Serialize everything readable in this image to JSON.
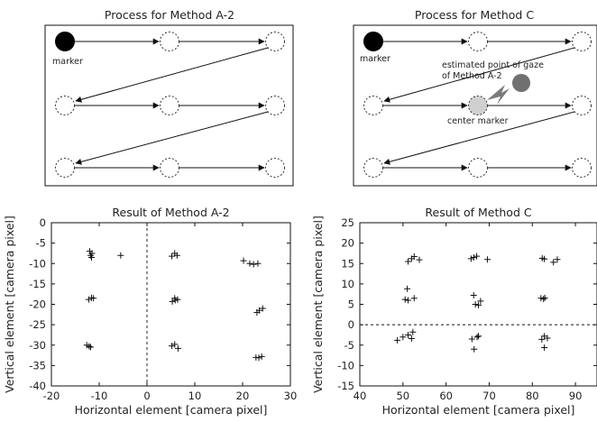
{
  "figure": {
    "process_a2": {
      "title": "Process for Method A-2",
      "marker_label": "marker"
    },
    "process_c": {
      "title": "Process for Method C",
      "marker_label": "marker",
      "gaze_label_line1": "estimated point of gaze",
      "gaze_label_line2": "of Method A-2",
      "center_marker_label": "center marker"
    }
  },
  "chart_data": [
    {
      "type": "scatter",
      "title": "Result of Method A-2",
      "xlabel": "Horizontal element [camera pixel]",
      "ylabel": "Vertical element [camera pixel]",
      "xlim": [
        -20,
        30
      ],
      "ylim": [
        -40,
        0
      ],
      "xticks": [
        -20,
        -10,
        0,
        10,
        20,
        30
      ],
      "yticks": [
        0,
        -5,
        -10,
        -15,
        -20,
        -25,
        -30,
        -35,
        -40
      ],
      "reference_line": {
        "orientation": "vertical",
        "value": 0,
        "style": "dashed"
      },
      "marker": "plus",
      "points": [
        [
          -12,
          -7
        ],
        [
          -11.5,
          -7.5
        ],
        [
          -11.8,
          -8
        ],
        [
          -11.6,
          -8.5
        ],
        [
          -5.5,
          -8
        ],
        [
          5.2,
          -8.2
        ],
        [
          5.8,
          -7.5
        ],
        [
          6.3,
          -8
        ],
        [
          20.2,
          -9.3
        ],
        [
          21.5,
          -10
        ],
        [
          22.3,
          -10.2
        ],
        [
          23.2,
          -10
        ],
        [
          -12.2,
          -18.8
        ],
        [
          -11.6,
          -18.4
        ],
        [
          -11.2,
          -18.5
        ],
        [
          5.3,
          -19.3
        ],
        [
          5.8,
          -18.5
        ],
        [
          6.4,
          -18.8
        ],
        [
          5.9,
          -19
        ],
        [
          23.0,
          -22
        ],
        [
          23.5,
          -21.5
        ],
        [
          24.2,
          -21
        ],
        [
          -12.6,
          -30
        ],
        [
          -12.1,
          -30.3
        ],
        [
          -11.8,
          -30.5
        ],
        [
          5.2,
          -30.2
        ],
        [
          5.8,
          -29.8
        ],
        [
          6.5,
          -30.8
        ],
        [
          22.8,
          -33
        ],
        [
          23.4,
          -33.1
        ],
        [
          24.0,
          -32.8
        ]
      ]
    },
    {
      "type": "scatter",
      "title": "Result of Method C",
      "xlabel": "Horizontal element [camera pixel]",
      "ylabel": "Vertical element [camera pixel]",
      "xlim": [
        40,
        95
      ],
      "ylim": [
        -15,
        25
      ],
      "xticks": [
        40,
        50,
        60,
        70,
        80,
        90
      ],
      "yticks": [
        25,
        20,
        15,
        10,
        5,
        0,
        -5,
        -10,
        -15
      ],
      "reference_line": {
        "orientation": "horizontal",
        "value": 0,
        "style": "dashed"
      },
      "marker": "plus",
      "points": [
        [
          51.2,
          15.5
        ],
        [
          52.0,
          16.2
        ],
        [
          52.6,
          16.7
        ],
        [
          53.8,
          15.9
        ],
        [
          65.8,
          16.2
        ],
        [
          66.4,
          16.5
        ],
        [
          67.1,
          16.8
        ],
        [
          69.6,
          16.0
        ],
        [
          82.3,
          16.3
        ],
        [
          82.8,
          16.1
        ],
        [
          84.9,
          15.3
        ],
        [
          85.8,
          16.0
        ],
        [
          51.0,
          8.8
        ],
        [
          50.5,
          6.2
        ],
        [
          51.2,
          6.0
        ],
        [
          52.6,
          6.5
        ],
        [
          66.4,
          7.2
        ],
        [
          66.8,
          5.0
        ],
        [
          67.5,
          4.8
        ],
        [
          68.0,
          5.8
        ],
        [
          82.0,
          6.5
        ],
        [
          82.6,
          6.3
        ],
        [
          82.9,
          6.6
        ],
        [
          48.7,
          -3.8
        ],
        [
          50.0,
          -3.0
        ],
        [
          51.2,
          -2.5
        ],
        [
          52.0,
          -3.4
        ],
        [
          52.3,
          -1.8
        ],
        [
          66.0,
          -3.5
        ],
        [
          66.5,
          -6.0
        ],
        [
          67.2,
          -3.0
        ],
        [
          67.5,
          -2.8
        ],
        [
          82.2,
          -3.6
        ],
        [
          82.8,
          -2.8
        ],
        [
          83.5,
          -3.3
        ],
        [
          82.8,
          -5.6
        ]
      ]
    }
  ]
}
